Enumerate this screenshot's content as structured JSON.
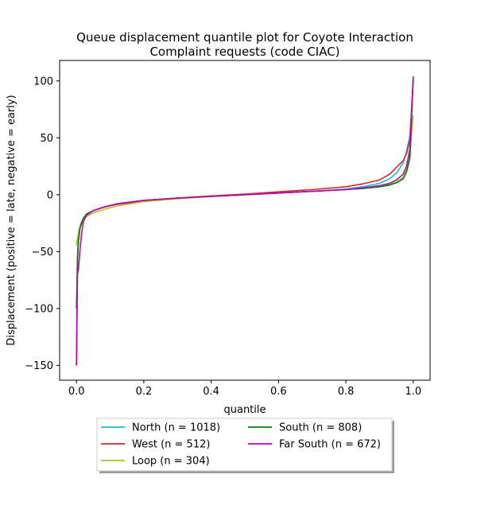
{
  "chart_data": {
    "type": "line",
    "title": [
      "Queue displacement quantile plot for Coyote Interaction",
      "Complaint  requests (code CIAC)"
    ],
    "xlabel": "quantile",
    "ylabel": "Displacement (positive = late, negative = early)",
    "xlim": [
      -0.05,
      1.05
    ],
    "ylim": [
      -163,
      118
    ],
    "xticks": [
      0.0,
      0.2,
      0.4,
      0.6,
      0.8,
      1.0
    ],
    "xtick_labels": [
      "0.0",
      "0.2",
      "0.4",
      "0.6",
      "0.8",
      "1.0"
    ],
    "yticks": [
      100,
      50,
      0,
      -50,
      -100,
      -150
    ],
    "ytick_labels": [
      "100",
      "50",
      "0",
      "−50",
      "−100",
      "−150"
    ],
    "grid": false,
    "legend_placement": "below plot, two columns, with shadow",
    "series": [
      {
        "name": "North (n = 1018)",
        "color": "#17becf",
        "x": [
          0.0,
          0.003,
          0.006,
          0.01,
          0.015,
          0.02,
          0.03,
          0.05,
          0.08,
          0.12,
          0.2,
          0.3,
          0.4,
          0.5,
          0.6,
          0.7,
          0.8,
          0.85,
          0.9,
          0.93,
          0.95,
          0.97,
          0.98,
          0.99,
          1.0
        ],
        "y": [
          -150,
          -60,
          -38,
          -28,
          -24,
          -21,
          -17,
          -14,
          -11,
          -8,
          -5,
          -3,
          -1.5,
          0,
          1.5,
          3,
          5,
          7,
          10,
          14,
          19,
          28,
          38,
          52,
          100
        ]
      },
      {
        "name": "West (n = 512)",
        "color": "#d62728",
        "x": [
          0.0,
          0.003,
          0.006,
          0.01,
          0.015,
          0.02,
          0.03,
          0.05,
          0.08,
          0.12,
          0.2,
          0.3,
          0.4,
          0.5,
          0.6,
          0.7,
          0.8,
          0.85,
          0.9,
          0.93,
          0.95,
          0.97,
          0.98,
          0.99,
          1.0
        ],
        "y": [
          -150,
          -55,
          -40,
          -30,
          -25,
          -21,
          -17,
          -14,
          -11,
          -8.5,
          -5.5,
          -3,
          -1,
          0.5,
          2.5,
          4.5,
          7,
          9.5,
          13,
          18,
          24,
          30,
          36,
          48,
          100
        ]
      },
      {
        "name": "Loop (n = 304)",
        "color": "#bcbd22",
        "x": [
          0.0,
          0.003,
          0.006,
          0.01,
          0.015,
          0.02,
          0.03,
          0.05,
          0.08,
          0.12,
          0.2,
          0.3,
          0.4,
          0.5,
          0.6,
          0.7,
          0.8,
          0.85,
          0.9,
          0.93,
          0.95,
          0.97,
          0.98,
          0.99,
          1.0
        ],
        "y": [
          -45,
          -38,
          -33,
          -28,
          -25,
          -22,
          -19,
          -16,
          -13,
          -10,
          -6,
          -3.5,
          -1.5,
          0,
          1.5,
          3,
          4.5,
          5.5,
          7,
          9,
          11,
          15,
          22,
          35,
          70
        ]
      },
      {
        "name": "South (n = 808)",
        "color": "#008000",
        "x": [
          0.0,
          0.003,
          0.006,
          0.01,
          0.015,
          0.02,
          0.03,
          0.05,
          0.08,
          0.12,
          0.2,
          0.3,
          0.4,
          0.5,
          0.6,
          0.7,
          0.8,
          0.85,
          0.9,
          0.93,
          0.95,
          0.97,
          0.98,
          0.99,
          1.0
        ],
        "y": [
          -100,
          -55,
          -40,
          -30,
          -25,
          -21,
          -17,
          -14,
          -11,
          -8,
          -5,
          -3,
          -1.5,
          0,
          1.5,
          3,
          4.5,
          5.5,
          7,
          8.5,
          10.5,
          14,
          20,
          32,
          104
        ]
      },
      {
        "name": "Far South (n = 672)",
        "color": "#bf00bf",
        "x": [
          0.0,
          0.003,
          0.006,
          0.01,
          0.015,
          0.02,
          0.03,
          0.05,
          0.08,
          0.12,
          0.2,
          0.3,
          0.4,
          0.5,
          0.6,
          0.7,
          0.8,
          0.85,
          0.9,
          0.93,
          0.95,
          0.97,
          0.98,
          0.99,
          1.0
        ],
        "y": [
          -150,
          -70,
          -65,
          -50,
          -35,
          -24,
          -18,
          -14,
          -11,
          -8,
          -5,
          -3,
          -1.5,
          0,
          1.5,
          3,
          4.5,
          6,
          8,
          10,
          13,
          18,
          25,
          40,
          104
        ]
      }
    ],
    "legend_order": [
      0,
      1,
      2,
      3,
      4
    ]
  }
}
